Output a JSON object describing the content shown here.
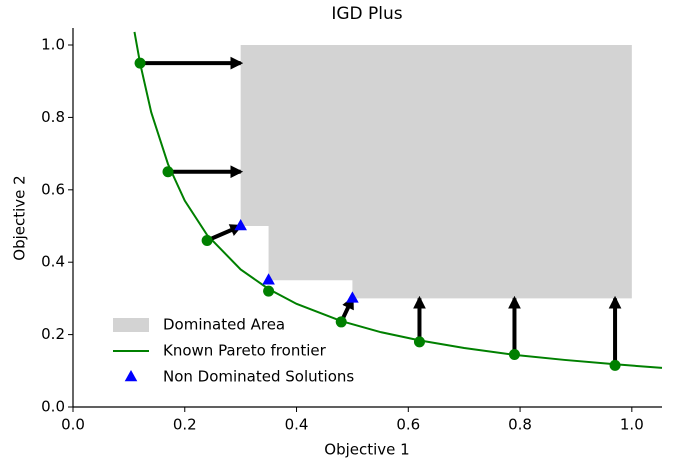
{
  "chart_data": {
    "type": "line",
    "title": "IGD Plus",
    "x_label": "Objective 1",
    "y_label": "Objective 2",
    "xlim": [
      0,
      1.054
    ],
    "ylim": [
      0,
      1.047
    ],
    "xticks": [
      {
        "value": 0,
        "label": "0.0"
      },
      0.2,
      0.4,
      0.6,
      0.8,
      {
        "value": 1,
        "label": "1.0"
      }
    ],
    "yticks": [
      {
        "value": 0,
        "label": "0.0"
      },
      0.2,
      0.4,
      0.6,
      0.8,
      {
        "value": 1,
        "label": "1.0"
      }
    ],
    "legend": "lower left",
    "series": [
      {
        "type": "area",
        "name": "Dominated Area",
        "color": "#d3d3d3",
        "x": [
          0.3,
          1.0,
          1.0,
          0.5,
          0.5,
          0.35,
          0.35,
          0.3
        ],
        "values": [
          1.0,
          1.0,
          0.3,
          0.3,
          0.35,
          0.35,
          0.5,
          0.5
        ]
      },
      {
        "type": "line",
        "name": "Known Pareto frontier",
        "color": "#008000",
        "x": [
          0.11,
          0.12,
          0.14,
          0.17,
          0.2,
          0.24,
          0.3,
          0.35,
          0.4,
          0.48,
          0.55,
          0.62,
          0.7,
          0.79,
          0.88,
          0.97,
          1.054
        ],
        "values": [
          1.036,
          0.95,
          0.814,
          0.671,
          0.57,
          0.475,
          0.38,
          0.326,
          0.285,
          0.2375,
          0.207,
          0.184,
          0.163,
          0.144,
          0.13,
          0.118,
          0.108
        ]
      },
      {
        "type": "scatter",
        "name": "Non Dominated Solutions",
        "color": "#0000ff",
        "marker": "triangle",
        "x": [
          0.3,
          0.35,
          0.5
        ],
        "values": [
          0.5,
          0.35,
          0.3
        ]
      },
      {
        "type": "scatter",
        "color": "#008000",
        "marker": "circle",
        "x": [
          0.12,
          0.17,
          0.24,
          0.35,
          0.48,
          0.62,
          0.79,
          0.97
        ],
        "values": [
          0.95,
          0.65,
          0.46,
          0.32,
          0.235,
          0.18,
          0.145,
          0.115
        ]
      }
    ],
    "arrows": {
      "color": "#000000",
      "x": [
        0.12,
        0.17,
        0.24,
        0.48,
        0.62,
        0.79,
        0.97
      ],
      "y": [
        0.95,
        0.65,
        0.46,
        0.235,
        0.18,
        0.145,
        0.115
      ],
      "x2": [
        0.3,
        0.3,
        0.3,
        0.5,
        0.62,
        0.79,
        0.97
      ],
      "y2": [
        0.95,
        0.65,
        0.5,
        0.3,
        0.3,
        0.3,
        0.3
      ]
    }
  }
}
